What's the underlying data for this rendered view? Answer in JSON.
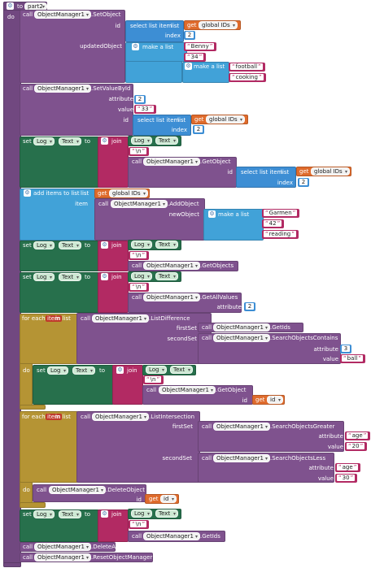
{
  "proc": {
    "to": "to",
    "name": "part2",
    "do": "do"
  },
  "kw": {
    "call": "call",
    "set": "set",
    "to": "to",
    "join": "join",
    "for_each": "for each",
    "in_list": "in list",
    "item": "item",
    "get": "get",
    "do": "do",
    "select_list_item": "select list item",
    "list": "list",
    "index": "index",
    "make_a_list": "make a list",
    "add_items": "add items to list",
    "id": "id",
    "updatedObject": "updatedObject",
    "attribute": "attribute",
    "value": "value",
    "newObject": "newObject",
    "firstSet": "firstSet",
    "secondSet": "secondSet"
  },
  "comp": "ObjectManager1",
  "logvar": "Log",
  "txtprop": "Text",
  "globalIDs": "global IDs",
  "methods": {
    "setObject": ".SetObject",
    "setValueById": ".SetValueById",
    "getObject": ".GetObject",
    "addObject": ".AddObject",
    "getObjects": ".GetObjects",
    "getAllValues": ".GetAllValues",
    "listDifference": ".ListDifference",
    "getIds": ".GetIds",
    "searchContains": ".SearchObjectsContains",
    "listIntersection": ".ListIntersection",
    "searchGreater": ".SearchObjectsGreater",
    "searchLess": ".SearchObjectsLess",
    "deleteObject": ".DeleteObject",
    "deleteAll": ".DeleteAllObjects",
    "reset": ".ResetObjectManager"
  },
  "vals": {
    "n2": "2",
    "benny": "Benny",
    "n34": "34",
    "football": "football",
    "cooking": "cooking",
    "n33": "33",
    "nl": "\\n",
    "garmen": "Garmen",
    "n42": "42",
    "reading": "reading",
    "n3": "3",
    "ball": "ball",
    "age": "age",
    "n20": "20",
    "n30": "30"
  }
}
